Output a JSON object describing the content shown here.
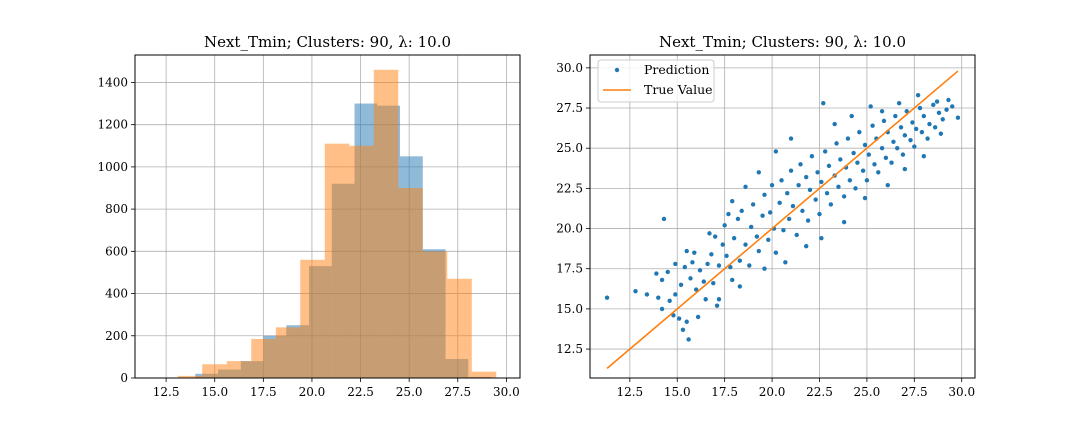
{
  "figure": {
    "background": "#ffffff"
  },
  "chart_data": [
    {
      "type": "bar",
      "subtype": "histogram-overlay",
      "title": "Next_Tmin; Clusters: 90, λ: 10.0",
      "xlim": [
        10.9,
        30.7
      ],
      "ylim": [
        0,
        1530
      ],
      "x_ticks": [
        12.5,
        15.0,
        17.5,
        20.0,
        22.5,
        25.0,
        27.5,
        30.0
      ],
      "x_tick_labels": [
        "12.5",
        "15.0",
        "17.5",
        "20.0",
        "22.5",
        "25.0",
        "27.5",
        "30.0"
      ],
      "y_ticks": [
        0,
        200,
        400,
        600,
        800,
        1000,
        1200,
        1400
      ],
      "y_tick_labels": [
        "0",
        "200",
        "400",
        "600",
        "800",
        "1000",
        "1200",
        "1400"
      ],
      "grid": true,
      "series": [
        {
          "color": "#1f77b4",
          "opacity": 0.5,
          "bins": [
            {
              "x0": 14.0,
              "x1": 15.17,
              "value": 20
            },
            {
              "x0": 15.17,
              "x1": 16.34,
              "value": 40
            },
            {
              "x0": 16.34,
              "x1": 17.51,
              "value": 80
            },
            {
              "x0": 17.51,
              "x1": 18.68,
              "value": 200
            },
            {
              "x0": 18.68,
              "x1": 19.85,
              "value": 250
            },
            {
              "x0": 19.85,
              "x1": 21.02,
              "value": 530
            },
            {
              "x0": 21.02,
              "x1": 22.19,
              "value": 920
            },
            {
              "x0": 22.19,
              "x1": 23.36,
              "value": 1300
            },
            {
              "x0": 23.36,
              "x1": 24.53,
              "value": 1290
            },
            {
              "x0": 24.53,
              "x1": 25.7,
              "value": 1050
            },
            {
              "x0": 25.7,
              "x1": 26.87,
              "value": 610
            },
            {
              "x0": 26.87,
              "x1": 28.04,
              "value": 90
            },
            {
              "x0": 28.04,
              "x1": 29.21,
              "value": 5
            }
          ]
        },
        {
          "color": "#ff7f0e",
          "opacity": 0.5,
          "bins": [
            {
              "x0": 13.1,
              "x1": 14.36,
              "value": 10
            },
            {
              "x0": 14.36,
              "x1": 15.62,
              "value": 65
            },
            {
              "x0": 15.62,
              "x1": 16.88,
              "value": 80
            },
            {
              "x0": 16.88,
              "x1": 18.14,
              "value": 185
            },
            {
              "x0": 18.14,
              "x1": 19.4,
              "value": 240
            },
            {
              "x0": 19.4,
              "x1": 20.66,
              "value": 560
            },
            {
              "x0": 20.66,
              "x1": 21.92,
              "value": 1110
            },
            {
              "x0": 21.92,
              "x1": 23.18,
              "value": 1100
            },
            {
              "x0": 23.18,
              "x1": 24.44,
              "value": 1460
            },
            {
              "x0": 24.44,
              "x1": 25.7,
              "value": 900
            },
            {
              "x0": 25.7,
              "x1": 26.96,
              "value": 600
            },
            {
              "x0": 26.96,
              "x1": 28.22,
              "value": 470
            },
            {
              "x0": 28.22,
              "x1": 29.48,
              "value": 30
            }
          ]
        }
      ]
    },
    {
      "type": "scatter",
      "title": "Next_Tmin; Clusters: 90, λ: 10.0",
      "xlim": [
        10.4,
        30.7
      ],
      "ylim": [
        10.7,
        30.8
      ],
      "x_ticks": [
        12.5,
        15.0,
        17.5,
        20.0,
        22.5,
        25.0,
        27.5,
        30.0
      ],
      "x_tick_labels": [
        "12.5",
        "15.0",
        "17.5",
        "20.0",
        "22.5",
        "25.0",
        "27.5",
        "30.0"
      ],
      "y_ticks": [
        12.5,
        15.0,
        17.5,
        20.0,
        22.5,
        25.0,
        27.5,
        30.0
      ],
      "y_tick_labels": [
        "12.5",
        "15.0",
        "17.5",
        "20.0",
        "22.5",
        "25.0",
        "27.5",
        "30.0"
      ],
      "grid": true,
      "legend": {
        "placement": "top-left"
      },
      "series": [
        {
          "name": "Prediction",
          "type": "scatter",
          "color": "#1f77b4",
          "points": [
            [
              11.3,
              15.7
            ],
            [
              13.4,
              15.9
            ],
            [
              14.2,
              16.8
            ],
            [
              14.0,
              15.7
            ],
            [
              14.3,
              20.6
            ],
            [
              14.5,
              17.3
            ],
            [
              14.2,
              15.0
            ],
            [
              14.6,
              15.5
            ],
            [
              14.8,
              14.6
            ],
            [
              14.9,
              15.9
            ],
            [
              15.1,
              14.4
            ],
            [
              15.2,
              16.5
            ],
            [
              15.3,
              13.7
            ],
            [
              15.6,
              13.1
            ],
            [
              15.4,
              17.6
            ],
            [
              15.5,
              18.6
            ],
            [
              15.8,
              17.9
            ],
            [
              15.7,
              16.9
            ],
            [
              16.0,
              16.2
            ],
            [
              16.2,
              17.4
            ],
            [
              16.4,
              16.7
            ],
            [
              16.5,
              15.6
            ],
            [
              16.6,
              17.8
            ],
            [
              16.8,
              18.4
            ],
            [
              16.9,
              16.6
            ],
            [
              17.0,
              19.5
            ],
            [
              17.1,
              15.2
            ],
            [
              17.2,
              17.7
            ],
            [
              17.4,
              19.0
            ],
            [
              17.5,
              20.2
            ],
            [
              17.6,
              18.3
            ],
            [
              17.8,
              17.6
            ],
            [
              17.9,
              16.8
            ],
            [
              18.0,
              19.4
            ],
            [
              18.2,
              20.6
            ],
            [
              18.3,
              18.0
            ],
            [
              18.4,
              21.1
            ],
            [
              18.6,
              19.0
            ],
            [
              18.8,
              17.7
            ],
            [
              18.9,
              20.1
            ],
            [
              19.0,
              21.5
            ],
            [
              19.2,
              19.5
            ],
            [
              19.3,
              18.6
            ],
            [
              19.5,
              20.8
            ],
            [
              19.6,
              22.1
            ],
            [
              19.8,
              19.3
            ],
            [
              19.9,
              21.0
            ],
            [
              20.0,
              22.7
            ],
            [
              20.1,
              20.0
            ],
            [
              20.2,
              18.5
            ],
            [
              20.4,
              21.6
            ],
            [
              20.5,
              23.0
            ],
            [
              20.6,
              19.9
            ],
            [
              20.8,
              22.2
            ],
            [
              20.9,
              20.6
            ],
            [
              21.0,
              23.6
            ],
            [
              21.1,
              21.4
            ],
            [
              21.3,
              19.6
            ],
            [
              21.4,
              22.7
            ],
            [
              21.5,
              24.0
            ],
            [
              21.6,
              21.1
            ],
            [
              21.8,
              23.2
            ],
            [
              21.9,
              20.5
            ],
            [
              22.0,
              22.4
            ],
            [
              22.1,
              24.5
            ],
            [
              22.3,
              21.8
            ],
            [
              22.4,
              23.5
            ],
            [
              22.5,
              20.9
            ],
            [
              22.6,
              22.9
            ],
            [
              22.8,
              24.8
            ],
            [
              22.9,
              22.2
            ],
            [
              23.0,
              23.9
            ],
            [
              23.1,
              21.5
            ],
            [
              23.3,
              23.3
            ],
            [
              23.4,
              25.3
            ],
            [
              23.5,
              22.6
            ],
            [
              23.6,
              24.3
            ],
            [
              23.8,
              22.0
            ],
            [
              23.9,
              23.8
            ],
            [
              24.0,
              25.6
            ],
            [
              24.1,
              23.0
            ],
            [
              24.3,
              24.7
            ],
            [
              24.4,
              22.5
            ],
            [
              24.5,
              24.1
            ],
            [
              24.6,
              26.0
            ],
            [
              24.8,
              23.6
            ],
            [
              24.9,
              25.2
            ],
            [
              25.0,
              23.0
            ],
            [
              25.1,
              24.6
            ],
            [
              25.3,
              26.4
            ],
            [
              25.4,
              24.0
            ],
            [
              25.5,
              25.6
            ],
            [
              25.6,
              23.5
            ],
            [
              25.8,
              25.0
            ],
            [
              25.9,
              26.7
            ],
            [
              26.0,
              24.4
            ],
            [
              26.1,
              26.0
            ],
            [
              26.3,
              24.1
            ],
            [
              26.4,
              25.4
            ],
            [
              26.5,
              27.0
            ],
            [
              26.6,
              25.0
            ],
            [
              26.8,
              26.3
            ],
            [
              26.9,
              24.6
            ],
            [
              27.0,
              25.8
            ],
            [
              27.1,
              27.3
            ],
            [
              27.3,
              25.5
            ],
            [
              27.4,
              26.6
            ],
            [
              27.5,
              25.1
            ],
            [
              27.6,
              26.2
            ],
            [
              27.8,
              27.5
            ],
            [
              27.9,
              26.0
            ],
            [
              28.0,
              27.0
            ],
            [
              28.2,
              25.6
            ],
            [
              28.3,
              26.5
            ],
            [
              28.5,
              27.7
            ],
            [
              28.6,
              26.3
            ],
            [
              28.8,
              27.2
            ],
            [
              28.9,
              25.9
            ],
            [
              29.0,
              26.8
            ],
            [
              29.2,
              27.4
            ],
            [
              29.8,
              26.9
            ],
            [
              22.7,
              27.8
            ],
            [
              23.3,
              26.5
            ],
            [
              24.2,
              27.0
            ],
            [
              25.2,
              27.6
            ],
            [
              20.2,
              24.8
            ],
            [
              21.0,
              25.6
            ],
            [
              19.3,
              23.5
            ],
            [
              18.6,
              22.6
            ],
            [
              17.9,
              21.7
            ],
            [
              21.8,
              18.9
            ],
            [
              22.6,
              19.4
            ],
            [
              23.8,
              20.4
            ],
            [
              24.9,
              21.9
            ],
            [
              26.1,
              22.7
            ],
            [
              27.0,
              23.7
            ],
            [
              28.0,
              24.5
            ],
            [
              20.7,
              17.9
            ],
            [
              19.6,
              17.5
            ],
            [
              18.3,
              16.4
            ],
            [
              17.2,
              15.6
            ],
            [
              16.1,
              14.5
            ],
            [
              15.5,
              14.2
            ],
            [
              29.5,
              27.6
            ],
            [
              29.3,
              28.0
            ],
            [
              28.7,
              27.9
            ],
            [
              27.7,
              28.3
            ],
            [
              26.7,
              27.8
            ],
            [
              25.8,
              27.3
            ],
            [
              17.7,
              20.9
            ],
            [
              16.7,
              19.7
            ],
            [
              15.9,
              18.5
            ],
            [
              14.9,
              17.8
            ],
            [
              13.9,
              17.2
            ],
            [
              12.8,
              16.1
            ]
          ]
        },
        {
          "name": "True Value",
          "type": "line",
          "color": "#ff7f0e",
          "points": [
            [
              11.3,
              11.3
            ],
            [
              29.8,
              29.8
            ]
          ]
        }
      ]
    }
  ]
}
